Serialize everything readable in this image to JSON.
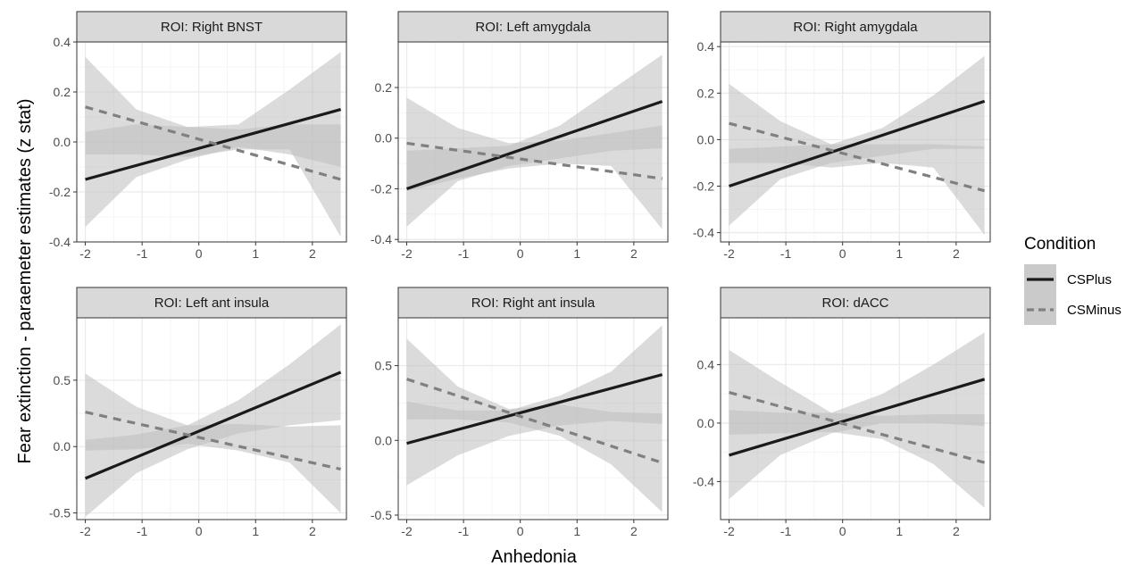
{
  "chart_data": {
    "type": "line",
    "xlabel": "Anhedonia",
    "ylabel": "Fear extinction - paraemeter estimates (z stat)",
    "legend": {
      "title": "Condition",
      "position": "right",
      "entries": [
        {
          "name": "CSPlus",
          "linestyle": "solid",
          "color": "#1a1a1a"
        },
        {
          "name": "CSMinus",
          "linestyle": "dashed",
          "color": "#808080"
        }
      ]
    },
    "colors": {
      "band": "#bdbdbd",
      "strip_bg": "#d9d9d9",
      "grid": "#ebebeb"
    },
    "grid": true,
    "panels": [
      {
        "title": "ROI: Right BNST",
        "xlim": [
          -2.15,
          2.6
        ],
        "ylim": [
          -0.4,
          0.4
        ],
        "xticks": [
          -2,
          -1,
          0,
          1,
          2
        ],
        "xtick_labels": [
          "-2",
          "-1",
          "0",
          "1",
          "2"
        ],
        "yticks": [
          -0.4,
          -0.2,
          0.0,
          0.2,
          0.4
        ],
        "ytick_labels": [
          "-0.4",
          "-0.2",
          "0.0",
          "0.2",
          "0.4"
        ],
        "series": [
          {
            "name": "CSPlus",
            "x": [
              -2,
              2.5
            ],
            "y": [
              -0.15,
              0.13
            ],
            "ci_lower": [
              -0.34,
              -0.14,
              -0.07,
              -0.02,
              -0.05,
              -0.1
            ],
            "ci_upper": [
              0.04,
              0.07,
              0.06,
              0.07,
              0.21,
              0.36
            ]
          },
          {
            "name": "CSMinus",
            "x": [
              -2,
              2.5
            ],
            "y": [
              0.14,
              -0.15
            ],
            "ci_lower": [
              -0.05,
              -0.05,
              -0.06,
              -0.03,
              -0.03,
              -0.38
            ],
            "ci_upper": [
              0.34,
              0.13,
              0.06,
              0.05,
              0.07,
              0.07
            ]
          }
        ]
      },
      {
        "title": "ROI: Left amygdala",
        "xlim": [
          -2.15,
          2.6
        ],
        "ylim": [
          -0.41,
          0.38
        ],
        "xticks": [
          -2,
          -1,
          0,
          1,
          2
        ],
        "xtick_labels": [
          "-2",
          "-1",
          "0",
          "1",
          "2"
        ],
        "yticks": [
          -0.4,
          -0.2,
          0.0,
          0.2
        ],
        "ytick_labels": [
          "-0.4",
          "-0.2",
          "0.0",
          "0.2"
        ],
        "series": [
          {
            "name": "CSPlus",
            "x": [
              -2,
              2.5
            ],
            "y": [
              -0.2,
              0.145
            ],
            "ci_lower": [
              -0.35,
              -0.17,
              -0.11,
              -0.08,
              -0.05,
              -0.04
            ],
            "ci_upper": [
              -0.05,
              -0.04,
              -0.03,
              0.05,
              0.19,
              0.33
            ]
          },
          {
            "name": "CSMinus",
            "x": [
              -2,
              2.5
            ],
            "y": [
              -0.02,
              -0.16
            ],
            "ci_lower": [
              -0.21,
              -0.16,
              -0.12,
              -0.1,
              -0.11,
              -0.36
            ],
            "ci_upper": [
              0.16,
              0.04,
              -0.02,
              -0.01,
              0.02,
              0.05
            ]
          }
        ]
      },
      {
        "title": "ROI: Right amygdala",
        "xlim": [
          -2.15,
          2.6
        ],
        "ylim": [
          -0.44,
          0.42
        ],
        "xticks": [
          -2,
          -1,
          0,
          1,
          2
        ],
        "xtick_labels": [
          "-2",
          "-1",
          "0",
          "1",
          "2"
        ],
        "yticks": [
          -0.4,
          -0.2,
          0.0,
          0.2,
          0.4
        ],
        "ytick_labels": [
          "-0.4",
          "-0.2",
          "0.0",
          "0.2",
          "0.4"
        ],
        "series": [
          {
            "name": "CSPlus",
            "x": [
              -2,
              2.5
            ],
            "y": [
              -0.2,
              0.165
            ],
            "ci_lower": [
              -0.37,
              -0.17,
              -0.1,
              -0.07,
              -0.04,
              -0.04
            ],
            "ci_upper": [
              -0.04,
              -0.03,
              -0.02,
              0.05,
              0.19,
              0.36
            ]
          },
          {
            "name": "CSMinus",
            "x": [
              -2,
              2.5
            ],
            "y": [
              0.07,
              -0.22
            ],
            "ci_lower": [
              -0.1,
              -0.1,
              -0.12,
              -0.1,
              -0.12,
              -0.41
            ],
            "ci_upper": [
              0.24,
              0.08,
              -0.02,
              -0.02,
              -0.02,
              -0.03
            ]
          }
        ]
      },
      {
        "title": "ROI: Left ant insula",
        "xlim": [
          -2.15,
          2.6
        ],
        "ylim": [
          -0.55,
          0.97
        ],
        "xticks": [
          -2,
          -1,
          0,
          1,
          2
        ],
        "xtick_labels": [
          "-2",
          "-1",
          "0",
          "1",
          "2"
        ],
        "yticks": [
          -0.5,
          0.0,
          0.5
        ],
        "ytick_labels": [
          "-0.5",
          "0.0",
          "0.5"
        ],
        "series": [
          {
            "name": "CSPlus",
            "x": [
              -2,
              2.5
            ],
            "y": [
              -0.24,
              0.56
            ],
            "ci_lower": [
              -0.53,
              -0.2,
              -0.02,
              0.1,
              0.16,
              0.2
            ],
            "ci_upper": [
              0.05,
              0.09,
              0.16,
              0.35,
              0.62,
              0.92
            ]
          },
          {
            "name": "CSMinus",
            "x": [
              -2,
              2.5
            ],
            "y": [
              0.26,
              -0.17
            ],
            "ci_lower": [
              -0.03,
              -0.02,
              0.02,
              -0.03,
              -0.12,
              -0.5
            ],
            "ci_upper": [
              0.55,
              0.3,
              0.16,
              0.17,
              0.15,
              0.16
            ]
          }
        ]
      },
      {
        "title": "ROI: Right ant insula",
        "xlim": [
          -2.15,
          2.6
        ],
        "ylim": [
          -0.53,
          0.82
        ],
        "xticks": [
          -2,
          -1,
          0,
          1,
          2
        ],
        "xtick_labels": [
          "-2",
          "-1",
          "0",
          "1",
          "2"
        ],
        "yticks": [
          -0.5,
          0.0,
          0.5
        ],
        "ytick_labels": [
          "-0.5",
          "0.0",
          "0.5"
        ],
        "series": [
          {
            "name": "CSPlus",
            "x": [
              -2,
              2.5
            ],
            "y": [
              -0.02,
              0.44
            ],
            "ci_lower": [
              -0.3,
              -0.1,
              0.03,
              0.1,
              0.13,
              0.11
            ],
            "ci_upper": [
              0.26,
              0.2,
              0.2,
              0.3,
              0.46,
              0.77
            ]
          },
          {
            "name": "CSMinus",
            "x": [
              -2,
              2.5
            ],
            "y": [
              0.41,
              -0.15
            ],
            "ci_lower": [
              0.14,
              0.14,
              0.12,
              0.03,
              -0.16,
              -0.48
            ],
            "ci_upper": [
              0.68,
              0.36,
              0.21,
              0.24,
              0.19,
              0.18
            ]
          }
        ]
      },
      {
        "title": "ROI: dACC",
        "xlim": [
          -2.15,
          2.6
        ],
        "ylim": [
          -0.66,
          0.72
        ],
        "xticks": [
          -2,
          -1,
          0,
          1,
          2
        ],
        "xtick_labels": [
          "-2",
          "-1",
          "0",
          "1",
          "2"
        ],
        "yticks": [
          -0.4,
          0.0,
          0.4
        ],
        "ytick_labels": [
          "-0.4",
          "0.0",
          "0.4"
        ],
        "series": [
          {
            "name": "CSPlus",
            "x": [
              -2,
              2.5
            ],
            "y": [
              -0.22,
              0.3
            ],
            "ci_lower": [
              -0.52,
              -0.22,
              -0.07,
              0.0,
              0.0,
              -0.02
            ],
            "ci_upper": [
              0.09,
              0.07,
              0.07,
              0.2,
              0.4,
              0.62
            ]
          },
          {
            "name": "CSMinus",
            "x": [
              -2,
              2.5
            ],
            "y": [
              0.21,
              -0.27
            ],
            "ci_lower": [
              -0.08,
              -0.07,
              -0.06,
              -0.11,
              -0.28,
              -0.58
            ],
            "ci_upper": [
              0.5,
              0.28,
              0.07,
              0.05,
              0.06,
              0.06
            ]
          }
        ]
      }
    ]
  }
}
